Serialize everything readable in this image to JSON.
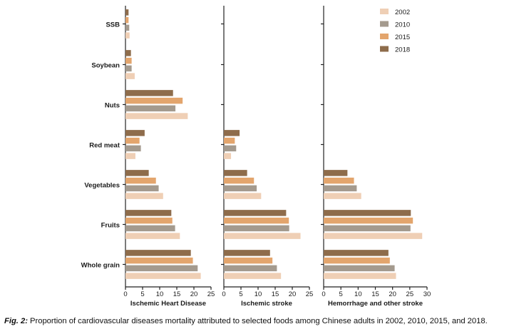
{
  "chart_data": {
    "type": "bar",
    "orientation": "horizontal",
    "categories": [
      "SSB",
      "Soybean",
      "Nuts",
      "Red meat",
      "Vegetables",
      "Fruits",
      "Whole grain"
    ],
    "legend": [
      "2002",
      "2010",
      "2015",
      "2018"
    ],
    "colors": {
      "2002": "#efcfb5",
      "2010": "#a49a8e",
      "2015": "#e3a56d",
      "2018": "#8e6c4b"
    },
    "legend_position": "top-right",
    "grid": false,
    "panels": [
      {
        "xlabel": "Ischemic Heart Disease",
        "xlim": [
          0,
          25
        ],
        "ticks": [
          "0",
          "5",
          "10",
          "15",
          "20",
          "25"
        ],
        "series": [
          {
            "name": "2002",
            "values": [
              1.2,
              2.7,
              18.2,
              2.9,
              11.0,
              15.9,
              22.0
            ]
          },
          {
            "name": "2010",
            "values": [
              1.1,
              1.8,
              14.6,
              4.5,
              9.7,
              14.5,
              21.1
            ]
          },
          {
            "name": "2015",
            "values": [
              0.9,
              1.8,
              16.7,
              4.1,
              8.9,
              13.7,
              19.7
            ]
          },
          {
            "name": "2018",
            "values": [
              0.9,
              1.6,
              13.9,
              5.6,
              6.8,
              13.4,
              19.1
            ]
          }
        ]
      },
      {
        "xlabel": "Ischemic stroke",
        "xlim": [
          0,
          25
        ],
        "ticks": [
          "0",
          "5",
          "10",
          "15",
          "20",
          "25"
        ],
        "series": [
          {
            "name": "2002",
            "values": [
              null,
              null,
              null,
              2.1,
              10.9,
              22.4,
              16.7
            ]
          },
          {
            "name": "2010",
            "values": [
              null,
              null,
              null,
              3.6,
              9.6,
              19.1,
              15.5
            ]
          },
          {
            "name": "2015",
            "values": [
              null,
              null,
              null,
              3.2,
              8.8,
              19.0,
              14.2
            ]
          },
          {
            "name": "2018",
            "values": [
              null,
              null,
              null,
              4.6,
              6.8,
              18.2,
              13.5
            ]
          }
        ]
      },
      {
        "xlabel": "Hemorrhage and other stroke",
        "xlim": [
          0,
          30
        ],
        "ticks": [
          "0",
          "5",
          "10",
          "15",
          "20",
          "25",
          "30"
        ],
        "series": [
          {
            "name": "2002",
            "values": [
              null,
              null,
              null,
              null,
              10.9,
              28.6,
              21.0
            ]
          },
          {
            "name": "2010",
            "values": [
              null,
              null,
              null,
              null,
              9.6,
              25.2,
              20.6
            ]
          },
          {
            "name": "2015",
            "values": [
              null,
              null,
              null,
              null,
              8.8,
              25.9,
              19.2
            ]
          },
          {
            "name": "2018",
            "values": [
              null,
              null,
              null,
              null,
              6.9,
              25.3,
              18.8
            ]
          }
        ]
      }
    ]
  },
  "caption": {
    "lead": "Fig. 2:",
    "text": " Proportion of cardiovascular diseases mortality attributed to selected foods among Chinese adults in 2002, 2010, 2015, and 2018."
  }
}
